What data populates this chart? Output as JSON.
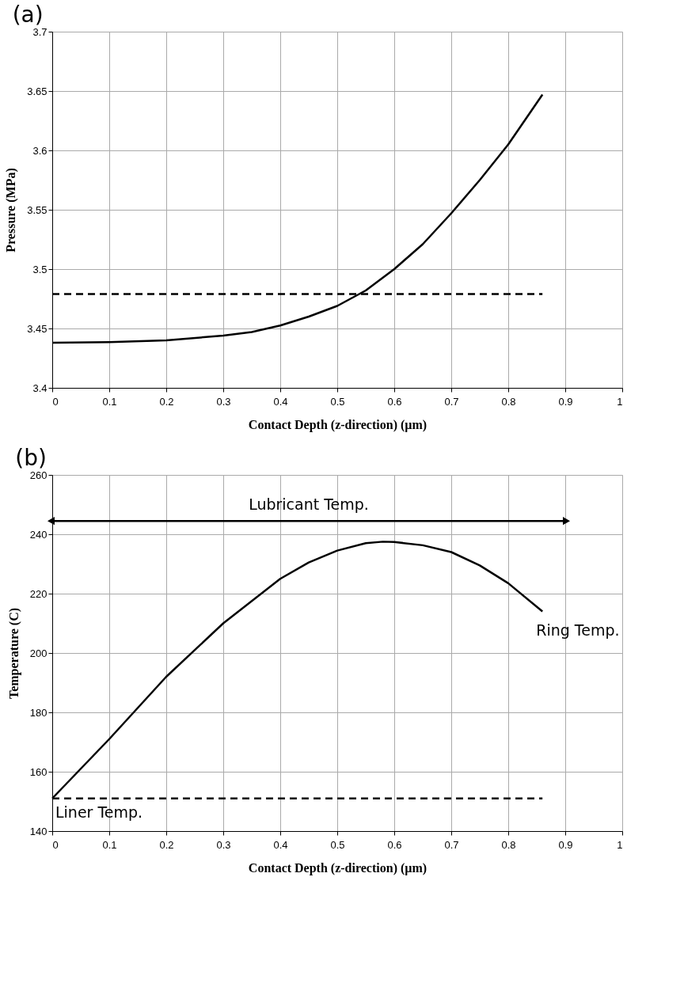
{
  "chart_data": [
    {
      "type": "line",
      "title": "(a)",
      "xlabel": "Contact Depth (z-direction) (µm)",
      "ylabel": "Pressure (MPa)",
      "xlim": [
        0,
        1
      ],
      "xticks": [
        0,
        0.1,
        0.2,
        0.3,
        0.4,
        0.5,
        0.6,
        0.7,
        0.8,
        0.9,
        1
      ],
      "ylim": [
        3.4,
        3.7
      ],
      "yticks": [
        3.4,
        3.45,
        3.5,
        3.55,
        3.6,
        3.65,
        3.7
      ],
      "grid": true,
      "marker": "none",
      "series": [
        {
          "color": "#000000",
          "line_style": "solid",
          "x": [
            0,
            0.1,
            0.2,
            0.3,
            0.35,
            0.4,
            0.45,
            0.5,
            0.55,
            0.6,
            0.65,
            0.7,
            0.75,
            0.8,
            0.86
          ],
          "values": [
            3.438,
            3.4385,
            3.44,
            3.444,
            3.447,
            3.4525,
            3.46,
            3.469,
            3.482,
            3.5,
            3.521,
            3.547,
            3.575,
            3.605,
            3.647
          ]
        },
        {
          "color": "#000000",
          "line_style": "dashed",
          "x": [
            0,
            0.86
          ],
          "values": [
            3.479,
            3.479
          ]
        }
      ]
    },
    {
      "type": "line",
      "title": "(b)",
      "xlabel": "Contact Depth (z-direction) (µm)",
      "ylabel": "Temperature (C)",
      "xlim": [
        0,
        1
      ],
      "xticks": [
        0,
        0.1,
        0.2,
        0.3,
        0.4,
        0.5,
        0.6,
        0.7,
        0.8,
        0.9,
        1
      ],
      "ylim": [
        140,
        260
      ],
      "yticks": [
        140,
        160,
        180,
        200,
        220,
        240,
        260
      ],
      "grid": true,
      "marker": "none",
      "series": [
        {
          "color": "#000000",
          "line_style": "solid",
          "x": [
            0,
            0.1,
            0.2,
            0.3,
            0.4,
            0.45,
            0.5,
            0.55,
            0.58,
            0.6,
            0.65,
            0.7,
            0.75,
            0.8,
            0.86
          ],
          "values": [
            151,
            171,
            192,
            210,
            225,
            230.5,
            234.5,
            237,
            237.5,
            237.4,
            236.3,
            234,
            229.5,
            223.5,
            214
          ]
        },
        {
          "color": "#000000",
          "line_style": "dashed",
          "x": [
            0,
            0.86
          ],
          "values": [
            151,
            151
          ]
        },
        {
          "color": "#000000",
          "line_style": "solid",
          "marker": "triangle",
          "x": [
            0,
            0.9
          ],
          "values": [
            244.5,
            244.5
          ]
        }
      ],
      "annotations": [
        {
          "text": "Lubricant Temp.",
          "x": 0.45,
          "y": 244.5
        },
        {
          "text": "Ring Temp.",
          "x": 0.86,
          "y": 214
        },
        {
          "text": "Liner Temp.",
          "x": 0,
          "y": 151
        }
      ]
    }
  ]
}
